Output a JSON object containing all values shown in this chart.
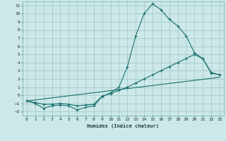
{
  "bg_color": "#cce8e8",
  "grid_color": "#aacece",
  "line_color": "#1a7070",
  "xlabel": "Humidex (Indice chaleur)",
  "xlim": [
    -0.5,
    23.5
  ],
  "ylim": [
    -2.5,
    11.5
  ],
  "xticks": [
    0,
    1,
    2,
    3,
    4,
    5,
    6,
    7,
    8,
    9,
    10,
    11,
    12,
    13,
    14,
    15,
    16,
    17,
    18,
    19,
    20,
    21,
    22,
    23
  ],
  "yticks": [
    -2,
    -1,
    0,
    1,
    2,
    3,
    4,
    5,
    6,
    7,
    8,
    9,
    10,
    11
  ],
  "line1_x": [
    0,
    1,
    2,
    3,
    4,
    5,
    6,
    7,
    8,
    9,
    10,
    11,
    12,
    13,
    14,
    15,
    16,
    17,
    18,
    19,
    20,
    21,
    22,
    23
  ],
  "line1_y": [
    -0.7,
    -1.0,
    -1.6,
    -1.3,
    -1.2,
    -1.3,
    -1.8,
    -1.5,
    -1.3,
    -0.15,
    0.3,
    1.0,
    3.5,
    7.3,
    10.0,
    11.2,
    10.5,
    9.3,
    8.5,
    7.3,
    5.2,
    4.5,
    2.7,
    2.5
  ],
  "line2_x": [
    0,
    1,
    2,
    3,
    4,
    5,
    6,
    7,
    8,
    9,
    10,
    11,
    12,
    13,
    14,
    15,
    16,
    17,
    18,
    19,
    20,
    21,
    22,
    23
  ],
  "line2_y": [
    -0.7,
    -0.9,
    -1.1,
    -1.1,
    -1.0,
    -1.1,
    -1.3,
    -1.2,
    -1.1,
    -0.1,
    0.2,
    0.6,
    1.0,
    1.5,
    2.0,
    2.5,
    3.0,
    3.5,
    4.0,
    4.5,
    5.0,
    4.5,
    2.8,
    2.5
  ],
  "line3_x": [
    0,
    23
  ],
  "line3_y": [
    -0.7,
    2.2
  ]
}
